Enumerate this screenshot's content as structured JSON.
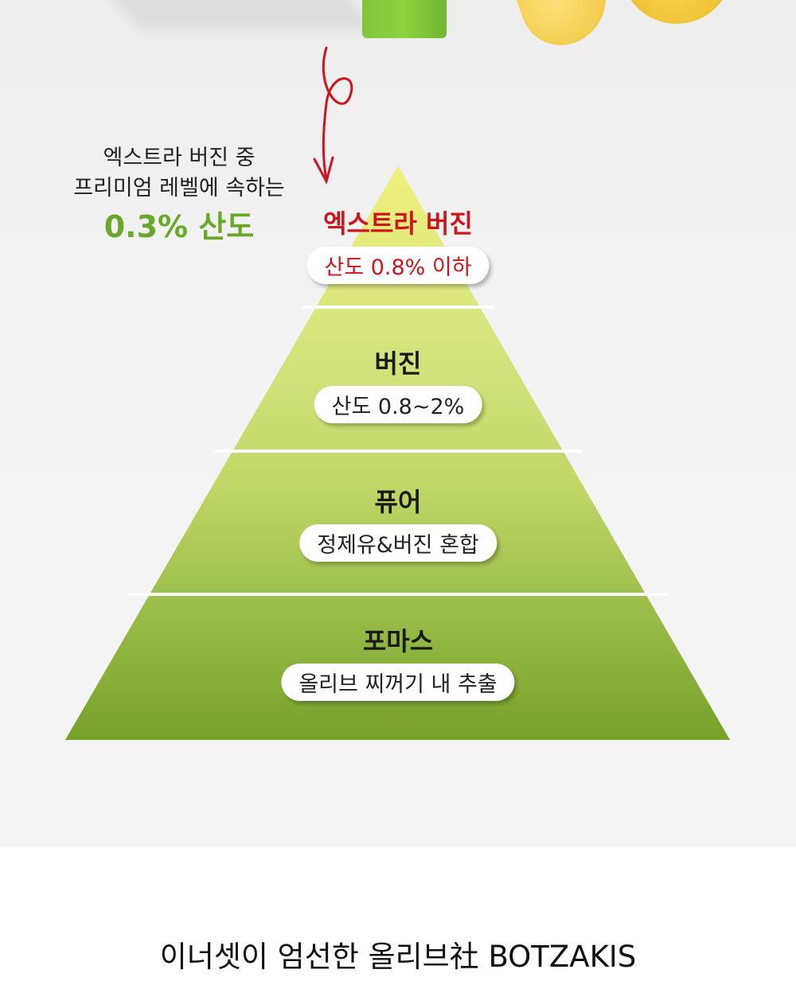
{
  "callout": {
    "line1": "엑스트라 버진 중",
    "line2": "프리미엄 레벨에 속하는",
    "highlight": "0.3% 산도"
  },
  "pyramid": {
    "levels": [
      {
        "title": "엑스트라 버진",
        "desc": "산도 0.8% 이하"
      },
      {
        "title": "버진",
        "desc": "산도 0.8~2%"
      },
      {
        "title": "퓨어",
        "desc": "정제유&버진 혼합"
      },
      {
        "title": "포마스",
        "desc": "올리브 찌꺼기 내 추출"
      }
    ]
  },
  "footer": {
    "title": "이너셋이 엄선한 올리브社 BOTZAKIS"
  },
  "colors": {
    "accent_red": "#d0141c",
    "accent_green": "#6aa82a",
    "pyramid_top": "#eef07c",
    "pyramid_bottom": "#76a12a"
  }
}
